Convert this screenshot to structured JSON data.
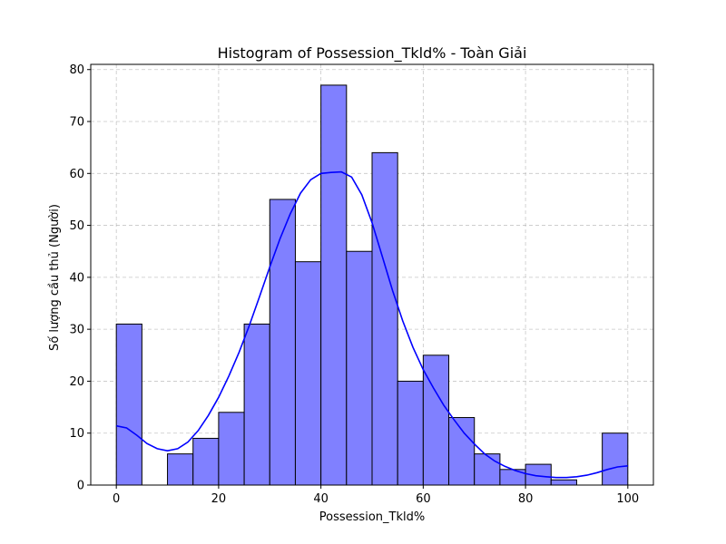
{
  "chart_data": {
    "type": "bar",
    "title": "Histogram of Possession_Tkld% - Toàn Giải",
    "xlabel": "Possession_Tkld%",
    "ylabel": "Số lượng cầu thủ (Người)",
    "xlim": [
      -5,
      105
    ],
    "ylim": [
      0,
      81
    ],
    "xticks": [
      0,
      20,
      40,
      60,
      80,
      100
    ],
    "yticks": [
      0,
      10,
      20,
      30,
      40,
      50,
      60,
      70,
      80
    ],
    "grid": true,
    "bins": [
      {
        "x0": 0,
        "x1": 5,
        "count": 31
      },
      {
        "x0": 5,
        "x1": 10,
        "count": 0
      },
      {
        "x0": 10,
        "x1": 15,
        "count": 6
      },
      {
        "x0": 15,
        "x1": 20,
        "count": 9
      },
      {
        "x0": 20,
        "x1": 25,
        "count": 14
      },
      {
        "x0": 25,
        "x1": 30,
        "count": 31
      },
      {
        "x0": 30,
        "x1": 35,
        "count": 55
      },
      {
        "x0": 35,
        "x1": 40,
        "count": 43
      },
      {
        "x0": 40,
        "x1": 45,
        "count": 77
      },
      {
        "x0": 45,
        "x1": 50,
        "count": 45
      },
      {
        "x0": 50,
        "x1": 55,
        "count": 64
      },
      {
        "x0": 55,
        "x1": 60,
        "count": 20
      },
      {
        "x0": 60,
        "x1": 65,
        "count": 25
      },
      {
        "x0": 65,
        "x1": 70,
        "count": 13
      },
      {
        "x0": 70,
        "x1": 75,
        "count": 6
      },
      {
        "x0": 75,
        "x1": 80,
        "count": 3
      },
      {
        "x0": 80,
        "x1": 85,
        "count": 4
      },
      {
        "x0": 85,
        "x1": 90,
        "count": 1
      },
      {
        "x0": 90,
        "x1": 95,
        "count": 0
      },
      {
        "x0": 95,
        "x1": 100,
        "count": 10
      }
    ],
    "kde": {
      "x": [
        0,
        2,
        4,
        6,
        8,
        10,
        12,
        14,
        16,
        18,
        20,
        22,
        24,
        26,
        28,
        30,
        32,
        34,
        36,
        38,
        40,
        42,
        44,
        46,
        48,
        50,
        52,
        54,
        56,
        58,
        60,
        62,
        64,
        66,
        68,
        70,
        72,
        74,
        76,
        78,
        80,
        82,
        84,
        86,
        88,
        90,
        92,
        94,
        96,
        98,
        100
      ],
      "y": [
        11.4,
        11.0,
        9.6,
        8.0,
        7.0,
        6.6,
        7.0,
        8.3,
        10.5,
        13.4,
        16.9,
        21.0,
        25.6,
        30.7,
        36.3,
        42.0,
        47.4,
        52.2,
        56.2,
        58.8,
        60.0,
        60.2,
        60.3,
        59.3,
        55.9,
        50.5,
        44.0,
        37.5,
        31.6,
        26.5,
        22.2,
        18.7,
        15.4,
        12.6,
        10.0,
        7.9,
        6.0,
        4.6,
        3.6,
        2.8,
        2.2,
        1.8,
        1.6,
        1.45,
        1.45,
        1.6,
        1.9,
        2.4,
        3.0,
        3.5,
        3.7
      ]
    },
    "colors": {
      "bar_fill": "#8080ff",
      "bar_edge": "#000000",
      "kde_line": "#0000ff",
      "grid": "#b0b0b0"
    }
  }
}
